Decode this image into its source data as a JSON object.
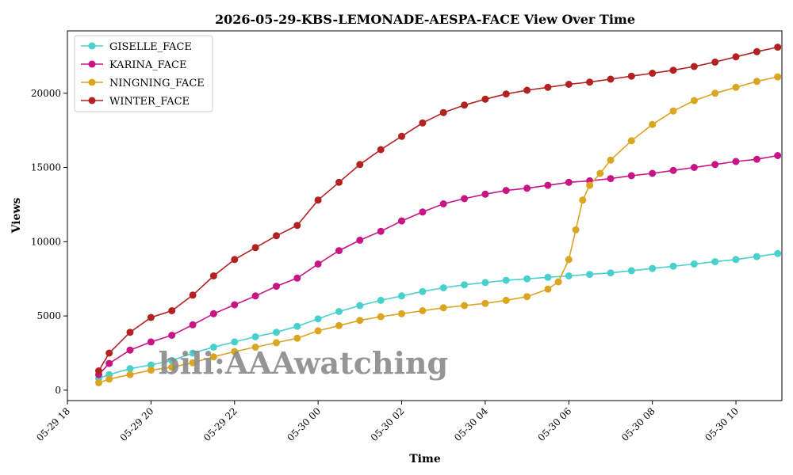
{
  "chart_data": {
    "type": "line",
    "title": "2026-05-29-KBS-LEMONADE-AESPA-FACE View Over Time",
    "xlabel": "Time",
    "ylabel": "Views",
    "x_ticks": [
      "05-29 18",
      "05-29 20",
      "05-29 22",
      "05-30 00",
      "05-30 02",
      "05-30 04",
      "05-30 06",
      "05-30 08",
      "05-30 10"
    ],
    "y_ticks": [
      0,
      5000,
      10000,
      15000,
      20000
    ],
    "xlim": [
      "05-29 18:00",
      "05-30 11:06"
    ],
    "ylim": [
      -700,
      24200
    ],
    "grid": false,
    "legend_position": "top-left",
    "watermark": "bili:AAAwatching",
    "series": [
      {
        "name": "GISELLE_FACE",
        "color": "#48d1cc",
        "points": [
          [
            "05-29 18:45",
            800
          ],
          [
            "05-29 19:00",
            1050
          ],
          [
            "05-29 19:30",
            1450
          ],
          [
            "05-29 20:00",
            1700
          ],
          [
            "05-29 20:30",
            2000
          ],
          [
            "05-29 21:00",
            2500
          ],
          [
            "05-29 21:30",
            2900
          ],
          [
            "05-29 22:00",
            3250
          ],
          [
            "05-29 22:30",
            3600
          ],
          [
            "05-29 23:00",
            3900
          ],
          [
            "05-29 23:30",
            4300
          ],
          [
            "05-30 00:00",
            4800
          ],
          [
            "05-30 00:30",
            5300
          ],
          [
            "05-30 01:00",
            5700
          ],
          [
            "05-30 01:30",
            6050
          ],
          [
            "05-30 02:00",
            6350
          ],
          [
            "05-30 02:30",
            6650
          ],
          [
            "05-30 03:00",
            6900
          ],
          [
            "05-30 03:30",
            7100
          ],
          [
            "05-30 04:00",
            7250
          ],
          [
            "05-30 04:30",
            7400
          ],
          [
            "05-30 05:00",
            7500
          ],
          [
            "05-30 05:30",
            7600
          ],
          [
            "05-30 06:00",
            7700
          ],
          [
            "05-30 06:30",
            7800
          ],
          [
            "05-30 07:00",
            7900
          ],
          [
            "05-30 07:30",
            8050
          ],
          [
            "05-30 08:00",
            8200
          ],
          [
            "05-30 08:30",
            8350
          ],
          [
            "05-30 09:00",
            8500
          ],
          [
            "05-30 09:30",
            8650
          ],
          [
            "05-30 10:00",
            8800
          ],
          [
            "05-30 10:30",
            9000
          ],
          [
            "05-30 11:00",
            9200
          ]
        ]
      },
      {
        "name": "KARINA_FACE",
        "color": "#c71585",
        "points": [
          [
            "05-29 18:45",
            1050
          ],
          [
            "05-29 19:00",
            1800
          ],
          [
            "05-29 19:30",
            2700
          ],
          [
            "05-29 20:00",
            3250
          ],
          [
            "05-29 20:30",
            3700
          ],
          [
            "05-29 21:00",
            4400
          ],
          [
            "05-29 21:30",
            5150
          ],
          [
            "05-29 22:00",
            5750
          ],
          [
            "05-29 22:30",
            6350
          ],
          [
            "05-29 23:00",
            7000
          ],
          [
            "05-29 23:30",
            7550
          ],
          [
            "05-30 00:00",
            8500
          ],
          [
            "05-30 00:30",
            9400
          ],
          [
            "05-30 01:00",
            10100
          ],
          [
            "05-30 01:30",
            10700
          ],
          [
            "05-30 02:00",
            11400
          ],
          [
            "05-30 02:30",
            12000
          ],
          [
            "05-30 03:00",
            12550
          ],
          [
            "05-30 03:30",
            12900
          ],
          [
            "05-30 04:00",
            13200
          ],
          [
            "05-30 04:30",
            13450
          ],
          [
            "05-30 05:00",
            13600
          ],
          [
            "05-30 05:30",
            13800
          ],
          [
            "05-30 06:00",
            14000
          ],
          [
            "05-30 06:30",
            14100
          ],
          [
            "05-30 07:00",
            14250
          ],
          [
            "05-30 07:30",
            14450
          ],
          [
            "05-30 08:00",
            14600
          ],
          [
            "05-30 08:30",
            14800
          ],
          [
            "05-30 09:00",
            15000
          ],
          [
            "05-30 09:30",
            15200
          ],
          [
            "05-30 10:00",
            15400
          ],
          [
            "05-30 10:30",
            15550
          ],
          [
            "05-30 11:00",
            15800
          ]
        ]
      },
      {
        "name": "NINGNING_FACE",
        "color": "#daa520",
        "points": [
          [
            "05-29 18:45",
            500
          ],
          [
            "05-29 19:00",
            750
          ],
          [
            "05-29 19:30",
            1050
          ],
          [
            "05-29 20:00",
            1350
          ],
          [
            "05-29 20:30",
            1550
          ],
          [
            "05-29 21:00",
            1850
          ],
          [
            "05-29 21:30",
            2250
          ],
          [
            "05-29 22:00",
            2600
          ],
          [
            "05-29 22:30",
            2900
          ],
          [
            "05-29 23:00",
            3200
          ],
          [
            "05-29 23:30",
            3500
          ],
          [
            "05-30 00:00",
            4000
          ],
          [
            "05-30 00:30",
            4350
          ],
          [
            "05-30 01:00",
            4700
          ],
          [
            "05-30 01:30",
            4950
          ],
          [
            "05-30 02:00",
            5150
          ],
          [
            "05-30 02:30",
            5350
          ],
          [
            "05-30 03:00",
            5550
          ],
          [
            "05-30 03:30",
            5700
          ],
          [
            "05-30 04:00",
            5850
          ],
          [
            "05-30 04:30",
            6050
          ],
          [
            "05-30 05:00",
            6300
          ],
          [
            "05-30 05:30",
            6800
          ],
          [
            "05-30 05:45",
            7300
          ],
          [
            "05-30 06:00",
            8800
          ],
          [
            "05-30 06:10",
            10800
          ],
          [
            "05-30 06:20",
            12800
          ],
          [
            "05-30 06:30",
            13800
          ],
          [
            "05-30 06:45",
            14600
          ],
          [
            "05-30 07:00",
            15500
          ],
          [
            "05-30 07:30",
            16800
          ],
          [
            "05-30 08:00",
            17900
          ],
          [
            "05-30 08:30",
            18800
          ],
          [
            "05-30 09:00",
            19500
          ],
          [
            "05-30 09:30",
            20000
          ],
          [
            "05-30 10:00",
            20400
          ],
          [
            "05-30 10:30",
            20800
          ],
          [
            "05-30 11:00",
            21100
          ]
        ]
      },
      {
        "name": "WINTER_FACE",
        "color": "#b22222",
        "points": [
          [
            "05-29 18:45",
            1300
          ],
          [
            "05-29 19:00",
            2500
          ],
          [
            "05-29 19:30",
            3900
          ],
          [
            "05-29 20:00",
            4900
          ],
          [
            "05-29 20:30",
            5350
          ],
          [
            "05-29 21:00",
            6400
          ],
          [
            "05-29 21:30",
            7700
          ],
          [
            "05-29 22:00",
            8800
          ],
          [
            "05-29 22:30",
            9600
          ],
          [
            "05-29 23:00",
            10400
          ],
          [
            "05-29 23:30",
            11100
          ],
          [
            "05-30 00:00",
            12800
          ],
          [
            "05-30 00:30",
            14000
          ],
          [
            "05-30 01:00",
            15200
          ],
          [
            "05-30 01:30",
            16200
          ],
          [
            "05-30 02:00",
            17100
          ],
          [
            "05-30 02:30",
            18000
          ],
          [
            "05-30 03:00",
            18700
          ],
          [
            "05-30 03:30",
            19200
          ],
          [
            "05-30 04:00",
            19600
          ],
          [
            "05-30 04:30",
            19950
          ],
          [
            "05-30 05:00",
            20200
          ],
          [
            "05-30 05:30",
            20400
          ],
          [
            "05-30 06:00",
            20600
          ],
          [
            "05-30 06:30",
            20750
          ],
          [
            "05-30 07:00",
            20950
          ],
          [
            "05-30 07:30",
            21150
          ],
          [
            "05-30 08:00",
            21350
          ],
          [
            "05-30 08:30",
            21550
          ],
          [
            "05-30 09:00",
            21800
          ],
          [
            "05-30 09:30",
            22100
          ],
          [
            "05-30 10:00",
            22450
          ],
          [
            "05-30 10:30",
            22800
          ],
          [
            "05-30 11:00",
            23100
          ]
        ]
      }
    ]
  }
}
